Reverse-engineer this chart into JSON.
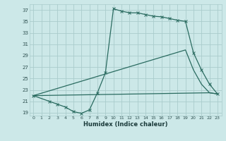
{
  "xlabel": "Humidex (Indice chaleur)",
  "bg_color": "#cce8e8",
  "grid_color": "#aacccc",
  "line_color": "#2a6b60",
  "xlim": [
    -0.5,
    23.5
  ],
  "ylim": [
    18.5,
    38
  ],
  "xticks": [
    0,
    1,
    2,
    3,
    4,
    5,
    6,
    7,
    8,
    9,
    10,
    11,
    12,
    13,
    14,
    15,
    16,
    17,
    18,
    19,
    20,
    21,
    22,
    23
  ],
  "yticks": [
    19,
    21,
    23,
    25,
    27,
    29,
    31,
    33,
    35,
    37
  ],
  "line1_x": [
    0,
    2,
    3,
    4,
    5,
    6,
    7,
    8,
    9,
    10,
    11,
    12,
    13,
    14,
    15,
    16,
    17,
    18,
    19,
    20,
    21,
    22,
    23
  ],
  "line1_y": [
    22,
    21,
    20.5,
    20,
    19.2,
    18.9,
    19.5,
    22.5,
    26,
    37.2,
    36.8,
    36.5,
    36.5,
    36.2,
    35.9,
    35.8,
    35.5,
    35.2,
    35.0,
    29.5,
    26.5,
    24.0,
    22.3
  ],
  "line2_x": [
    0,
    19,
    20,
    21,
    22,
    23
  ],
  "line2_y": [
    22,
    30,
    26.5,
    24.0,
    22.5,
    22.3
  ],
  "line3_x": [
    0,
    22,
    23
  ],
  "line3_y": [
    22,
    22.5,
    22.3
  ],
  "marker_x": [
    0,
    2,
    3,
    4,
    5,
    6,
    7,
    8,
    9,
    10,
    11,
    12,
    13,
    14,
    15,
    16,
    17,
    18,
    19,
    20,
    21,
    22,
    23
  ],
  "marker_y": [
    22,
    21,
    20.5,
    20,
    19.2,
    18.9,
    19.5,
    22.5,
    26,
    37.2,
    36.8,
    36.5,
    36.5,
    36.2,
    35.9,
    35.8,
    35.5,
    35.2,
    35.0,
    29.5,
    26.5,
    24.0,
    22.3
  ]
}
